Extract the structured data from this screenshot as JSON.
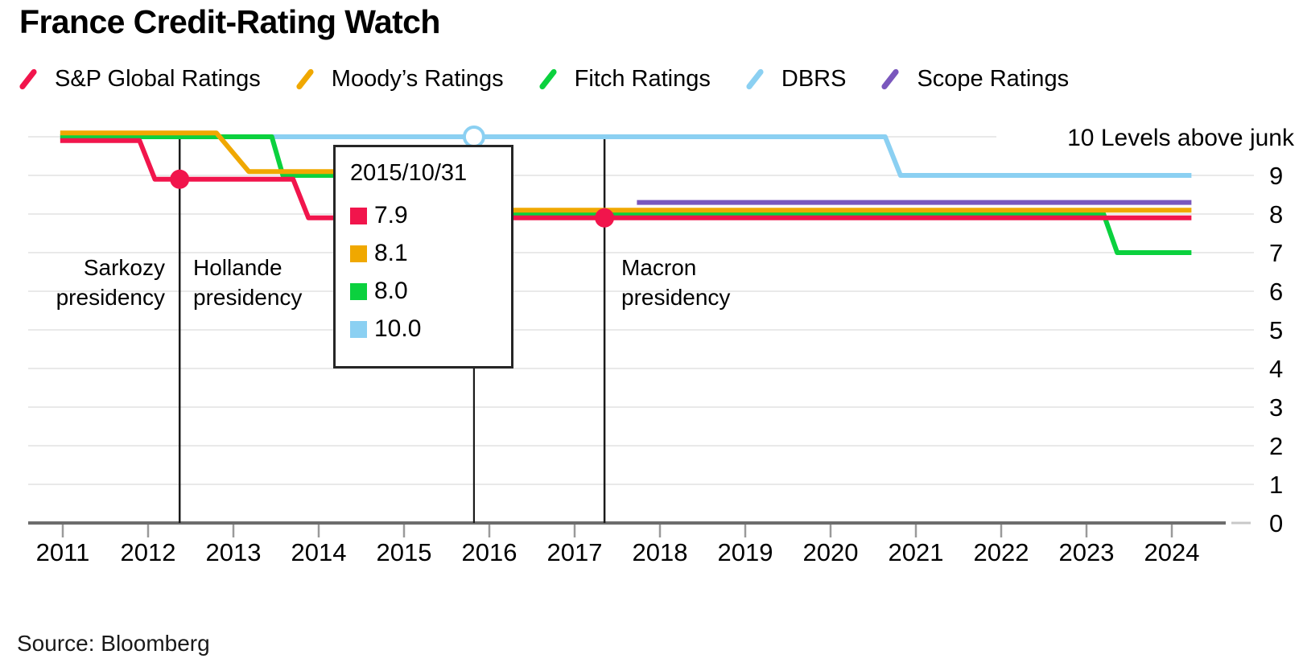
{
  "title": "France Credit-Rating Watch",
  "source": "Source: Bloomberg",
  "tooltip": {
    "date": "2015/10/31",
    "rows": [
      {
        "value": "7.9",
        "color": "#f1154c"
      },
      {
        "value": "8.1",
        "color": "#f0a800"
      },
      {
        "value": "8.0",
        "color": "#0bd13e"
      },
      {
        "value": "10.0",
        "color": "#8bd0f2"
      }
    ]
  },
  "annotations": [
    {
      "id": "sarkozy",
      "lines": [
        "Sarkozy",
        "presidency"
      ]
    },
    {
      "id": "hollande",
      "lines": [
        "Hollande",
        "presidency"
      ]
    },
    {
      "id": "macron",
      "lines": [
        "Macron",
        "presidency"
      ]
    }
  ],
  "chart_data": {
    "type": "line",
    "title": "France Credit-Rating Watch",
    "x_axis": {
      "ticks": [
        2011,
        2012,
        2013,
        2014,
        2015,
        2016,
        2017,
        2018,
        2019,
        2020,
        2021,
        2022,
        2023,
        2024
      ],
      "range": [
        2010.97,
        2024.55
      ]
    },
    "y_axis": {
      "ticks": [
        0,
        1,
        2,
        3,
        4,
        5,
        6,
        7,
        8,
        9
      ],
      "label_top": "10 Levels above junk",
      "range": [
        0,
        10.5
      ],
      "grid": true
    },
    "legend_position": "top",
    "series": [
      {
        "name": "S&P Global Ratings",
        "color": "#f1154c",
        "points": [
          [
            2010.97,
            9.9
          ],
          [
            2011.9,
            9.9
          ],
          [
            2012.08,
            8.9
          ],
          [
            2013.7,
            8.9
          ],
          [
            2013.88,
            7.9
          ],
          [
            2024.23,
            7.9
          ]
        ]
      },
      {
        "name": "Moody’s Ratings",
        "color": "#f0a800",
        "points": [
          [
            2010.97,
            10.1
          ],
          [
            2012.8,
            10.1
          ],
          [
            2013.18,
            9.1
          ],
          [
            2015.6,
            9.1
          ],
          [
            2015.82,
            8.1
          ],
          [
            2024.23,
            8.1
          ]
        ]
      },
      {
        "name": "Fitch Ratings",
        "color": "#0bd13e",
        "points": [
          [
            2010.97,
            10.0
          ],
          [
            2013.45,
            10.0
          ],
          [
            2013.58,
            9.0
          ],
          [
            2014.9,
            9.0
          ],
          [
            2015.08,
            8.0
          ],
          [
            2023.2,
            8.0
          ],
          [
            2023.36,
            7.0
          ],
          [
            2024.23,
            7.0
          ]
        ]
      },
      {
        "name": "DBRS",
        "color": "#8bd0f2",
        "points": [
          [
            2010.97,
            10.0
          ],
          [
            2020.64,
            10.0
          ],
          [
            2020.82,
            9.0
          ],
          [
            2024.23,
            9.0
          ]
        ]
      },
      {
        "name": "Scope Ratings",
        "color": "#7a57bd",
        "points": [
          [
            2017.73,
            8.3
          ],
          [
            2024.23,
            8.3
          ]
        ]
      }
    ],
    "event_lines": [
      {
        "x": 2012.37
      },
      {
        "x": 2017.35
      }
    ],
    "crosshair_x": 2015.82,
    "markers": [
      {
        "type": "dot",
        "x": 2012.37,
        "y": 8.9,
        "color": "#f1154c"
      },
      {
        "type": "dot",
        "x": 2017.35,
        "y": 7.9,
        "color": "#f1154c"
      },
      {
        "type": "hover-point",
        "x": 2015.82,
        "y": 10.0,
        "fill": "#ffffff",
        "stroke": "#8bd0f2"
      }
    ],
    "colors": {
      "grid": "#e9e9e9",
      "axis": "#6d6d6d",
      "tick": "#9a9a9a",
      "event_line": "#1b1b1b",
      "text": "#000000"
    }
  }
}
